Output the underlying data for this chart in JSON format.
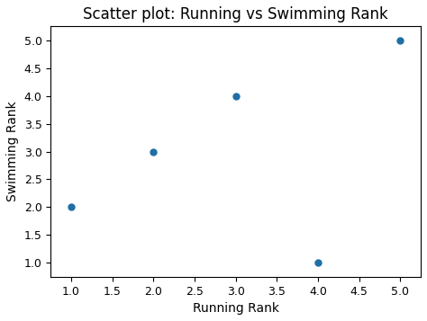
{
  "title": "Scatter plot: Running vs Swimming Rank",
  "xlabel": "Running Rank",
  "ylabel": "Swimming Rank",
  "x": [
    1,
    2,
    3,
    4,
    5
  ],
  "y": [
    2,
    3,
    4,
    1,
    5
  ],
  "dot_color": "#1f6fa4",
  "dot_size": 25,
  "xlim": [
    0.75,
    5.25
  ],
  "ylim": [
    0.75,
    5.25
  ],
  "xticks": [
    1.0,
    1.5,
    2.0,
    2.5,
    3.0,
    3.5,
    4.0,
    4.5,
    5.0
  ],
  "yticks": [
    1.0,
    1.5,
    2.0,
    2.5,
    3.0,
    3.5,
    4.0,
    4.5,
    5.0
  ],
  "background_color": "#ffffff",
  "axes_background_color": "#ffffff",
  "title_fontsize": 12,
  "label_fontsize": 10
}
